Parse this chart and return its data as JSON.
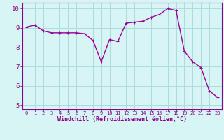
{
  "x": [
    0,
    1,
    2,
    3,
    4,
    5,
    6,
    7,
    8,
    9,
    10,
    11,
    12,
    13,
    14,
    15,
    16,
    17,
    18,
    19,
    20,
    21,
    22,
    23
  ],
  "y": [
    9.05,
    9.15,
    8.85,
    8.75,
    8.75,
    8.75,
    8.75,
    8.7,
    8.35,
    7.25,
    8.4,
    8.3,
    9.25,
    9.3,
    9.35,
    9.55,
    9.7,
    10.0,
    9.9,
    7.8,
    7.25,
    6.95,
    5.75,
    5.4
  ],
  "line_color": "#990099",
  "marker": "+",
  "marker_size": 3,
  "bg_color": "#d8f5f5",
  "grid_color": "#aadddd",
  "xlabel": "Windchill (Refroidissement éolien,°C)",
  "ylabel": "",
  "xlim": [
    -0.5,
    23.5
  ],
  "ylim": [
    4.8,
    10.3
  ],
  "xticks": [
    0,
    1,
    2,
    3,
    4,
    5,
    6,
    7,
    8,
    9,
    10,
    11,
    12,
    13,
    14,
    15,
    16,
    17,
    18,
    19,
    20,
    21,
    22,
    23
  ],
  "yticks": [
    5,
    6,
    7,
    8,
    9,
    10
  ],
  "xlabel_color": "#880088",
  "tick_color": "#880088",
  "axis_color": "#880088",
  "line_width": 1.0,
  "xlabel_fontsize": 6.0,
  "xtick_fontsize": 5.0,
  "ytick_fontsize": 6.5
}
